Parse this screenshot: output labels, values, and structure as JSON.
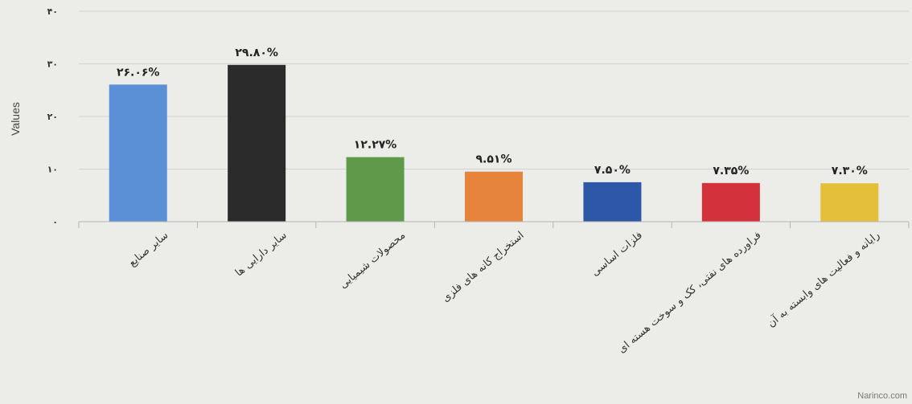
{
  "chart_data": {
    "type": "bar",
    "ylabel": "Values",
    "ylim": [
      0,
      40
    ],
    "yticks": [
      0,
      10,
      20,
      30,
      40
    ],
    "ytick_labels": [
      "۰",
      "۱۰",
      "۲۰",
      "۳۰",
      "۴۰"
    ],
    "grid": true,
    "categories": [
      "سایر صنایع",
      "سایر دارایی ها",
      "محصولات شیمیایی",
      "استخراج کانه های فلزی",
      "فلزات اساسی",
      "فراورده های نفتی، کک و سوخت هسته ای",
      "رایانه و فعالیت های وابسته به آن"
    ],
    "values": [
      26.06,
      29.8,
      12.27,
      9.51,
      7.5,
      7.35,
      7.3
    ],
    "value_labels": [
      "۲۶.۰۶%",
      "۲۹.۸۰%",
      "۱۲.۲۷%",
      "۹.۵۱%",
      "۷.۵۰%",
      "۷.۳۵%",
      "۷.۳۰%"
    ],
    "colors": [
      "#5b8fd6",
      "#2b2b2b",
      "#5f9a4a",
      "#e6843c",
      "#2d58a8",
      "#d3313c",
      "#e3bf3a"
    ]
  },
  "watermark": "Narinco.com"
}
